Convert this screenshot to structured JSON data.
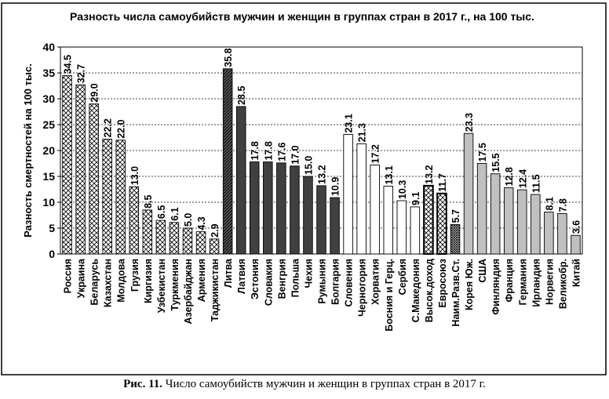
{
  "chart_data": {
    "type": "bar",
    "title": "Разность числа самоубийств мужчин и женщин в группах стран в 2017 г., на 100 тыс.",
    "ylabel": "Разность смертностей на 100 тыс.",
    "xlabel": "",
    "ylim": [
      0,
      40
    ],
    "yticks": [
      0,
      5,
      10,
      15,
      20,
      25,
      30,
      35,
      40
    ],
    "grid": true,
    "categories": [
      "Россия",
      "Украина",
      "Беларусь",
      "Казахстан",
      "Молдова",
      "Грузия",
      "Киргизия",
      "Узбекистан",
      "Туркмения",
      "Азербайджан",
      "Армения",
      "Таджикистан",
      "Литва",
      "Латвия",
      "Эстония",
      "Словакия",
      "Венгрия",
      "Польша",
      "Чехия",
      "Румыния",
      "Болгария",
      "Словения",
      "Черногория",
      "Хорватия",
      "Босния и Герц.",
      "Сербия",
      "С.Македония",
      "Высок.доход",
      "Евросоюз",
      "Наим.Разв.Ст.",
      "Корея Юж.",
      "США",
      "Финляндия",
      "Франция",
      "Германия",
      "Ирландия",
      "Норвегия",
      "Великобр.",
      "Китай"
    ],
    "values": [
      34.5,
      32.7,
      29.0,
      22.2,
      22.0,
      13.0,
      8.5,
      6.5,
      6.1,
      5.0,
      4.3,
      2.9,
      35.8,
      28.5,
      17.8,
      17.8,
      17.6,
      17.0,
      15.0,
      13.2,
      10.9,
      23.1,
      21.3,
      17.2,
      13.1,
      10.3,
      9.1,
      13.2,
      11.7,
      5.7,
      23.3,
      17.5,
      15.5,
      12.8,
      12.4,
      11.5,
      8.1,
      7.8,
      3.6
    ],
    "value_labels": [
      "34.5",
      "32.7",
      "29.0",
      "22.2",
      "22.0",
      "13.0",
      "8.5",
      "6.5",
      "6.1",
      "5.0",
      "4.3",
      "2.9",
      "35.8",
      "28.5",
      "17.8",
      "17.8",
      "17.6",
      "17.0",
      "15.0",
      "13.2",
      "10.9",
      "23.1",
      "21.3",
      "17.2",
      "13.1",
      "10.3",
      "9.1",
      "13.2",
      "11.7",
      "5.7",
      "23.3",
      "17.5",
      "15.5",
      "12.8",
      "12.4",
      "11.5",
      "8.1",
      "7.8",
      "3.6"
    ],
    "groups": [
      "cis",
      "cis",
      "cis",
      "cis",
      "cis",
      "cis",
      "cis",
      "cis",
      "cis",
      "cis",
      "cis",
      "cis",
      "east-europe-hatched",
      "east-europe",
      "east-europe",
      "east-europe",
      "east-europe",
      "east-europe",
      "east-europe",
      "east-europe",
      "east-europe",
      "balkans",
      "balkans",
      "balkans",
      "balkans",
      "balkans",
      "balkans",
      "aggregate",
      "aggregate",
      "aggregate-dense",
      "developed",
      "developed",
      "developed",
      "developed",
      "developed",
      "developed",
      "developed",
      "developed",
      "developed"
    ],
    "colors": {
      "cis": "#ffffff",
      "east-europe": "#404040",
      "balkans": "#ffffff",
      "developed": "#c0c0c0",
      "frame": "#000000",
      "background": "#ffffff"
    }
  },
  "caption": {
    "label": "Рис. 11.",
    "text": " Число самоубийств мужчин и женщин в группах стран в 2017 г."
  }
}
